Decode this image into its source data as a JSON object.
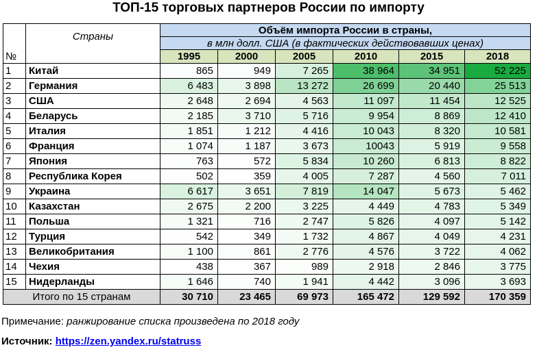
{
  "title": "ТОП-15 торговых партнеров России по импорту",
  "header": {
    "no": "№",
    "countries": "Страны",
    "volume_title": "Объём импорта России в страны,",
    "volume_unit": "в млн долл. США (в фактических действовавших ценах)",
    "years": [
      "1995",
      "2000",
      "2005",
      "2010",
      "2015",
      "2018"
    ]
  },
  "rows": [
    {
      "rank": "1",
      "country": "Китай",
      "values": [
        "865",
        "949",
        "7 265",
        "38 964",
        "34 951",
        "52 225"
      ]
    },
    {
      "rank": "2",
      "country": "Германия",
      "values": [
        "6 483",
        "3 898",
        "13 272",
        "26 699",
        "20 440",
        "25 513"
      ]
    },
    {
      "rank": "3",
      "country": "США",
      "values": [
        "2 648",
        "2 694",
        "4 563",
        "11 097",
        "11 454",
        "12 525"
      ]
    },
    {
      "rank": "4",
      "country": "Беларусь",
      "values": [
        "2 185",
        "3 710",
        "5 716",
        "9 954",
        "8 869",
        "12 410"
      ]
    },
    {
      "rank": "5",
      "country": "Италия",
      "values": [
        "1 851",
        "1 212",
        "4 416",
        "10 043",
        "8 320",
        "10 581"
      ]
    },
    {
      "rank": "6",
      "country": "Франция",
      "values": [
        "1 074",
        "1 187",
        "3 673",
        "10043",
        "5 919",
        "9 558"
      ]
    },
    {
      "rank": "7",
      "country": "Япония",
      "values": [
        "763",
        "572",
        "5 834",
        "10 260",
        "6 813",
        "8 822"
      ]
    },
    {
      "rank": "8",
      "country": "Республика Корея",
      "values": [
        "502",
        "359",
        "4 005",
        "7 287",
        "4 560",
        "7 011"
      ]
    },
    {
      "rank": "9",
      "country": "Украина",
      "values": [
        "6 617",
        "3 651",
        "7 819",
        "14 047",
        "5 673",
        "5 462"
      ]
    },
    {
      "rank": "10",
      "country": "Казахстан",
      "values": [
        "2 675",
        "2 200",
        "3 225",
        "4 449",
        "4 783",
        "5 349"
      ]
    },
    {
      "rank": "11",
      "country": "Польша",
      "values": [
        "1 321",
        "716",
        "2 747",
        "5 826",
        "4 097",
        "5 142"
      ]
    },
    {
      "rank": "12",
      "country": "Турция",
      "values": [
        "542",
        "349",
        "1 732",
        "4 867",
        "4 049",
        "4 231"
      ]
    },
    {
      "rank": "13",
      "country": "Великобритания",
      "values": [
        "1 100",
        "861",
        "2 776",
        "4 576",
        "3 722",
        "4 062"
      ]
    },
    {
      "rank": "14",
      "country": "Чехия",
      "values": [
        "438",
        "367",
        "989",
        "2 918",
        "2 846",
        "3 775"
      ]
    },
    {
      "rank": "15",
      "country": "Нидерланды",
      "values": [
        "1 646",
        "740",
        "1 941",
        "4 442",
        "3 096",
        "3 693"
      ]
    }
  ],
  "total": {
    "label": "Итого по 15 странам",
    "values": [
      "30 710",
      "23 465",
      "69 973",
      "165 472",
      "129 592",
      "170 359"
    ]
  },
  "note": {
    "prefix": "Примечание: ",
    "text": "ранжирование списка произведена по 2018 году"
  },
  "source": {
    "label": "Источник: ",
    "link": "https://zen.yandex.ru/statruss"
  },
  "heatmap": {
    "color_low": "#ffffff",
    "color_high": "#1aab40"
  }
}
